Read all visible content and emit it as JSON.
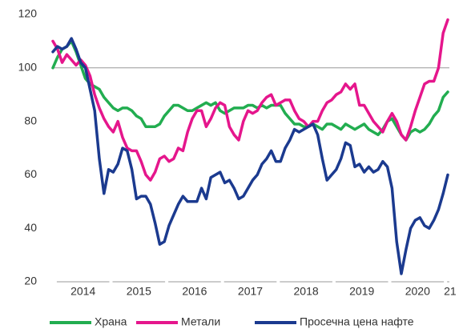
{
  "chart_data": {
    "type": "line",
    "categories": [
      null,
      null,
      null,
      null,
      null,
      null,
      "2014",
      null,
      null,
      null,
      null,
      null,
      null,
      null,
      null,
      null,
      null,
      null,
      "2015",
      null,
      null,
      null,
      null,
      null,
      null,
      null,
      null,
      null,
      null,
      null,
      "2016",
      null,
      null,
      null,
      null,
      null,
      null,
      null,
      null,
      null,
      null,
      null,
      "2017",
      null,
      null,
      null,
      null,
      null,
      null,
      null,
      null,
      null,
      null,
      null,
      "2018",
      null,
      null,
      null,
      null,
      null,
      null,
      null,
      null,
      null,
      null,
      null,
      "2019",
      null,
      null,
      null,
      null,
      null,
      null,
      null,
      null,
      null,
      null,
      null,
      "2020",
      null,
      null,
      null,
      null,
      null,
      null,
      "21"
    ],
    "series": [
      {
        "name": "Храна",
        "color": "#22ad50",
        "values": [
          100,
          104,
          107,
          108,
          110,
          106,
          101,
          96,
          94,
          93,
          92,
          89,
          87,
          85,
          84,
          85,
          85,
          84,
          82,
          81,
          78,
          78,
          78,
          79,
          82,
          84,
          86,
          86,
          85,
          84,
          84,
          85,
          86,
          87,
          86,
          87,
          84,
          83,
          84,
          85,
          85,
          85,
          86,
          86,
          85,
          86,
          85,
          86,
          86,
          86,
          83,
          81,
          79,
          79,
          78,
          78,
          79,
          78,
          77,
          79,
          79,
          78,
          77,
          79,
          78,
          77,
          78,
          79,
          77,
          76,
          75,
          77,
          80,
          81,
          78,
          75,
          73,
          76,
          77,
          76,
          77,
          79,
          82,
          84,
          89,
          91
        ]
      },
      {
        "name": "Метали",
        "color": "#e5168c",
        "values": [
          110,
          107,
          102,
          105,
          103,
          101,
          103,
          101,
          97,
          90,
          85,
          81,
          78,
          76,
          80,
          74,
          70,
          69,
          69,
          65,
          60,
          58,
          61,
          66,
          67,
          65,
          66,
          70,
          69,
          76,
          81,
          84,
          84,
          78,
          81,
          85,
          87,
          86,
          78,
          75,
          73,
          80,
          84,
          83,
          84,
          87,
          89,
          90,
          86,
          87,
          88,
          88,
          84,
          81,
          80,
          78,
          80,
          80,
          84,
          87,
          88,
          90,
          91,
          94,
          92,
          94,
          86,
          86,
          83,
          80,
          78,
          76,
          80,
          83,
          80,
          75,
          73,
          78,
          84,
          89,
          94,
          95,
          95,
          100,
          113,
          118
        ]
      },
      {
        "name": "Просечна цена нафте",
        "color": "#1b3a8f",
        "values": [
          106,
          108,
          107,
          108,
          111,
          107,
          102,
          100,
          92,
          84,
          66,
          53,
          62,
          61,
          64,
          70,
          69,
          62,
          51,
          52,
          52,
          49,
          42,
          34,
          35,
          41,
          45,
          49,
          52,
          50,
          50,
          50,
          55,
          51,
          59,
          60,
          61,
          57,
          58,
          55,
          51,
          52,
          55,
          58,
          60,
          64,
          66,
          69,
          65,
          65,
          70,
          73,
          77,
          76,
          77,
          78,
          79,
          75,
          66,
          58,
          60,
          62,
          66,
          72,
          71,
          63,
          64,
          61,
          63,
          61,
          62,
          65,
          63,
          55,
          35,
          23,
          32,
          40,
          43,
          44,
          41,
          40,
          43,
          47,
          53,
          60
        ]
      }
    ],
    "ylim": [
      20,
      120
    ],
    "yticks": [
      20,
      40,
      60,
      80,
      100,
      120
    ],
    "reference_line": 100
  }
}
